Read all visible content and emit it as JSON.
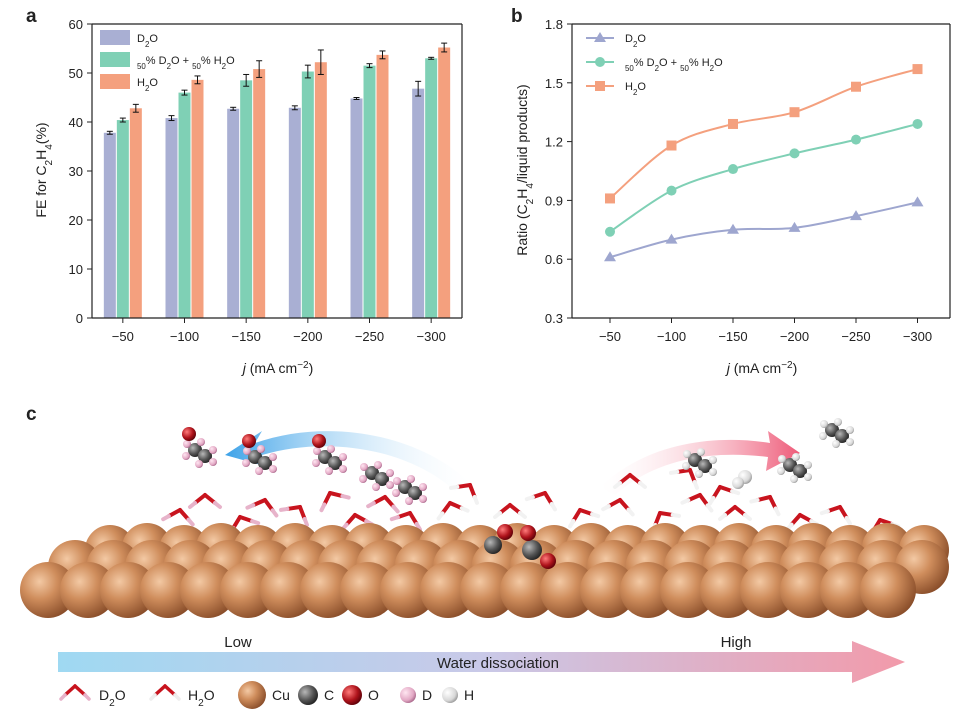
{
  "panels": {
    "a": "a",
    "b": "b",
    "c": "c"
  },
  "chart_data": [
    {
      "type": "bar",
      "panel": "a",
      "categories": [
        "-50",
        "-100",
        "-150",
        "-200",
        "-250",
        "-300"
      ],
      "series": [
        {
          "name": "D2O",
          "label_html": "D<tspan baseline-shift='sub' font-size='8'>2</tspan>O",
          "color": "#a9afd3",
          "values": [
            37.8,
            40.8,
            42.7,
            42.9,
            44.8,
            46.8
          ],
          "errors": [
            0.3,
            0.5,
            0.3,
            0.4,
            0.2,
            1.5
          ]
        },
        {
          "name": "50% D2O + 50% H2O",
          "color": "#7fd0b5",
          "values": [
            40.4,
            46.0,
            48.5,
            50.3,
            51.5,
            53.0
          ],
          "errors": [
            0.4,
            0.5,
            1.2,
            1.3,
            0.4,
            0.2
          ]
        },
        {
          "name": "H2O",
          "color": "#f4a07e",
          "values": [
            42.8,
            48.6,
            50.8,
            52.2,
            53.7,
            55.2
          ],
          "errors": [
            0.8,
            0.8,
            1.7,
            2.5,
            0.8,
            0.9
          ]
        }
      ],
      "ylim": [
        0,
        60
      ],
      "yticks": [
        "0",
        "10",
        "20",
        "30",
        "40",
        "50",
        "60"
      ],
      "ylabel": "FE for C2H4(%)",
      "xlabel": "j (mA cm−2)",
      "legend": "top-left"
    },
    {
      "type": "line",
      "panel": "b",
      "categories": [
        "-50",
        "-100",
        "-150",
        "-200",
        "-250",
        "-300"
      ],
      "series": [
        {
          "name": "D2O",
          "color": "#9ea6cf",
          "marker": "triangle",
          "values": [
            0.61,
            0.7,
            0.75,
            0.76,
            0.82,
            0.89
          ]
        },
        {
          "name": "50% D2O + 50% H2O",
          "color": "#7fd0b5",
          "marker": "circle",
          "values": [
            0.74,
            0.95,
            1.06,
            1.14,
            1.21,
            1.29
          ]
        },
        {
          "name": "H2O",
          "color": "#f4a07e",
          "marker": "square",
          "values": [
            0.91,
            1.18,
            1.29,
            1.35,
            1.48,
            1.57
          ]
        }
      ],
      "ylim": [
        0.3,
        1.8
      ],
      "yticks": [
        "0.3",
        "0.6",
        "0.9",
        "1.2",
        "1.5",
        "1.8"
      ],
      "ylabel": "Ratio (C2H4/liquid products)",
      "xlabel": "j (mA cm−2)",
      "legend": "top-left"
    }
  ],
  "scene": {
    "low_label": "Low",
    "high_label": "High",
    "arrow_label": "Water dissociation",
    "legend": [
      {
        "key": "d2o",
        "label": "D2O"
      },
      {
        "key": "h2o",
        "label": "H2O"
      },
      {
        "key": "cu",
        "label": "Cu",
        "color": "#c98554"
      },
      {
        "key": "c",
        "label": "C",
        "color": "#555555"
      },
      {
        "key": "o",
        "label": "O",
        "color": "#b0141c"
      },
      {
        "key": "d",
        "label": "D",
        "color": "#e2a8c4"
      },
      {
        "key": "h",
        "label": "H",
        "color": "#e6e6e6"
      }
    ]
  }
}
